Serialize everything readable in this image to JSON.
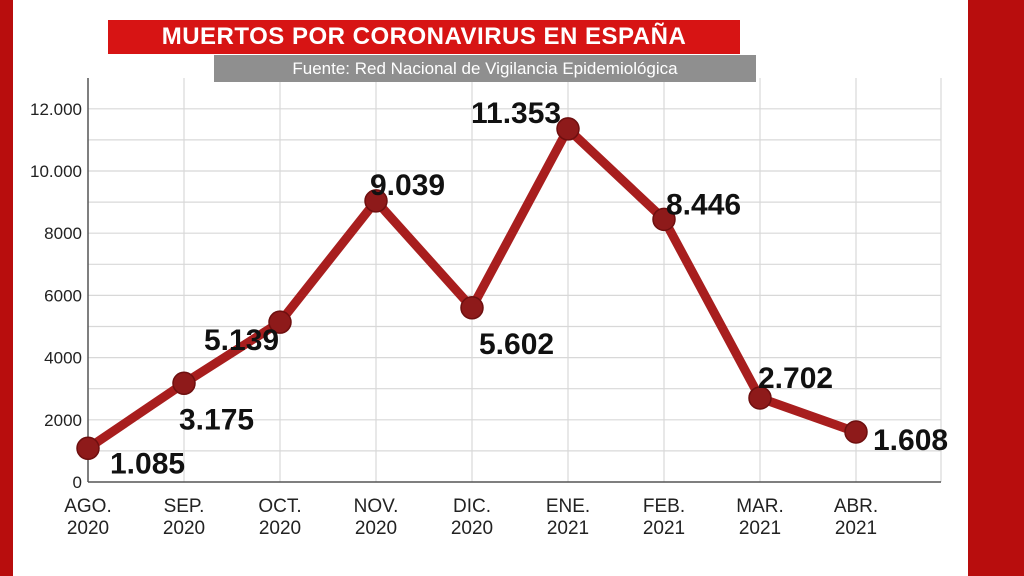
{
  "colors": {
    "frame": "#b80d0d",
    "title_bg": "#d71414",
    "source_bg": "#8f8f8f",
    "line": "#a81e1e",
    "marker": "#8e1a1a",
    "grid": "#d8d8d8"
  },
  "chart_data": {
    "type": "line",
    "title": "MUERTOS POR CORONAVIRUS EN ESPAÑA",
    "subtitle": "Fuente: Red Nacional de Vigilancia Epidemiológica",
    "categories": [
      [
        "AGO.",
        "2020"
      ],
      [
        "SEP.",
        "2020"
      ],
      [
        "OCT.",
        "2020"
      ],
      [
        "NOV.",
        "2020"
      ],
      [
        "DIC.",
        "2020"
      ],
      [
        "ENE.",
        "2021"
      ],
      [
        "FEB.",
        "2021"
      ],
      [
        "MAR.",
        "2021"
      ],
      [
        "ABR.",
        "2021"
      ]
    ],
    "values": [
      1085,
      3175,
      5139,
      9039,
      5602,
      11353,
      8446,
      2702,
      1608
    ],
    "data_labels": [
      "1.085",
      "3.175",
      "5.139",
      "9.039",
      "5.602",
      "11.353",
      "8.446",
      "2.702",
      "1.608"
    ],
    "y_ticks": [
      0,
      2000,
      4000,
      6000,
      8000,
      10000,
      12000
    ],
    "y_tick_labels": [
      "0",
      "2000",
      "4000",
      "6000",
      "8000",
      "10.000",
      "12.000"
    ],
    "ylim": [
      0,
      12500
    ],
    "xlabel": "",
    "ylabel": "",
    "grid": true,
    "legend": "none"
  }
}
